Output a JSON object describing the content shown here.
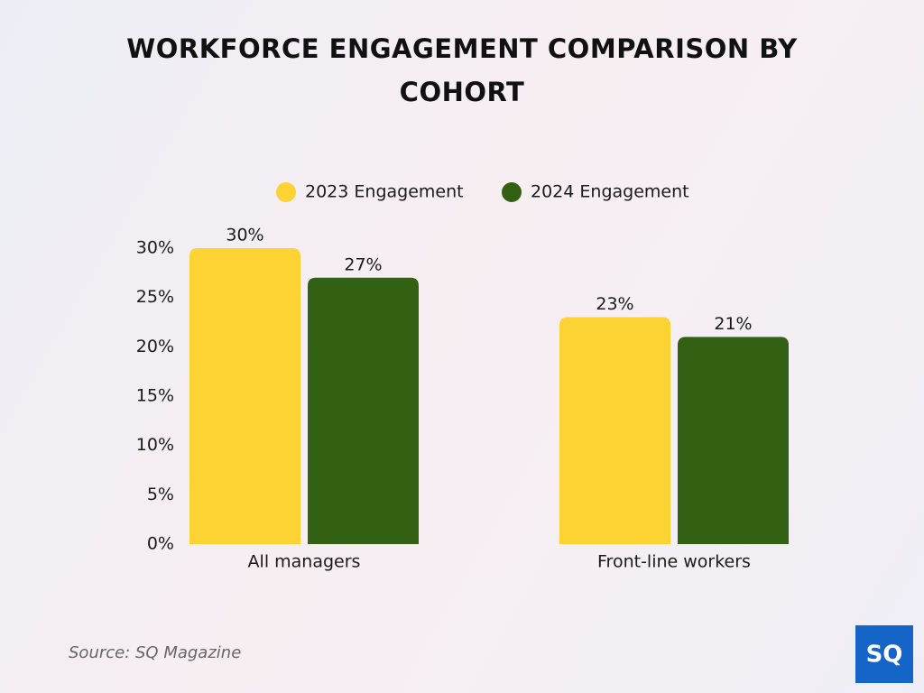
{
  "chart_data": {
    "type": "bar",
    "title": "WORKFORCE ENGAGEMENT COMPARISON BY COHORT",
    "categories": [
      "All managers",
      "Front-line workers"
    ],
    "series": [
      {
        "name": "2023 Engagement",
        "color": "#fdd233",
        "values": [
          30,
          23
        ],
        "value_labels": [
          "30%",
          "23%"
        ]
      },
      {
        "name": "2024 Engagement",
        "color": "#336114",
        "values": [
          27,
          21
        ],
        "value_labels": [
          "27%",
          "21%"
        ]
      }
    ],
    "ylim": [
      0,
      30
    ],
    "yticks": [
      {
        "value": 0,
        "label": "0%"
      },
      {
        "value": 5,
        "label": "5%"
      },
      {
        "value": 10,
        "label": "10%"
      },
      {
        "value": 15,
        "label": "15%"
      },
      {
        "value": 20,
        "label": "20%"
      },
      {
        "value": 25,
        "label": "25%"
      },
      {
        "value": 30,
        "label": "30%"
      }
    ],
    "grid": false,
    "legend": "top",
    "source": "Source: SQ Magazine",
    "logo": "SQ"
  }
}
